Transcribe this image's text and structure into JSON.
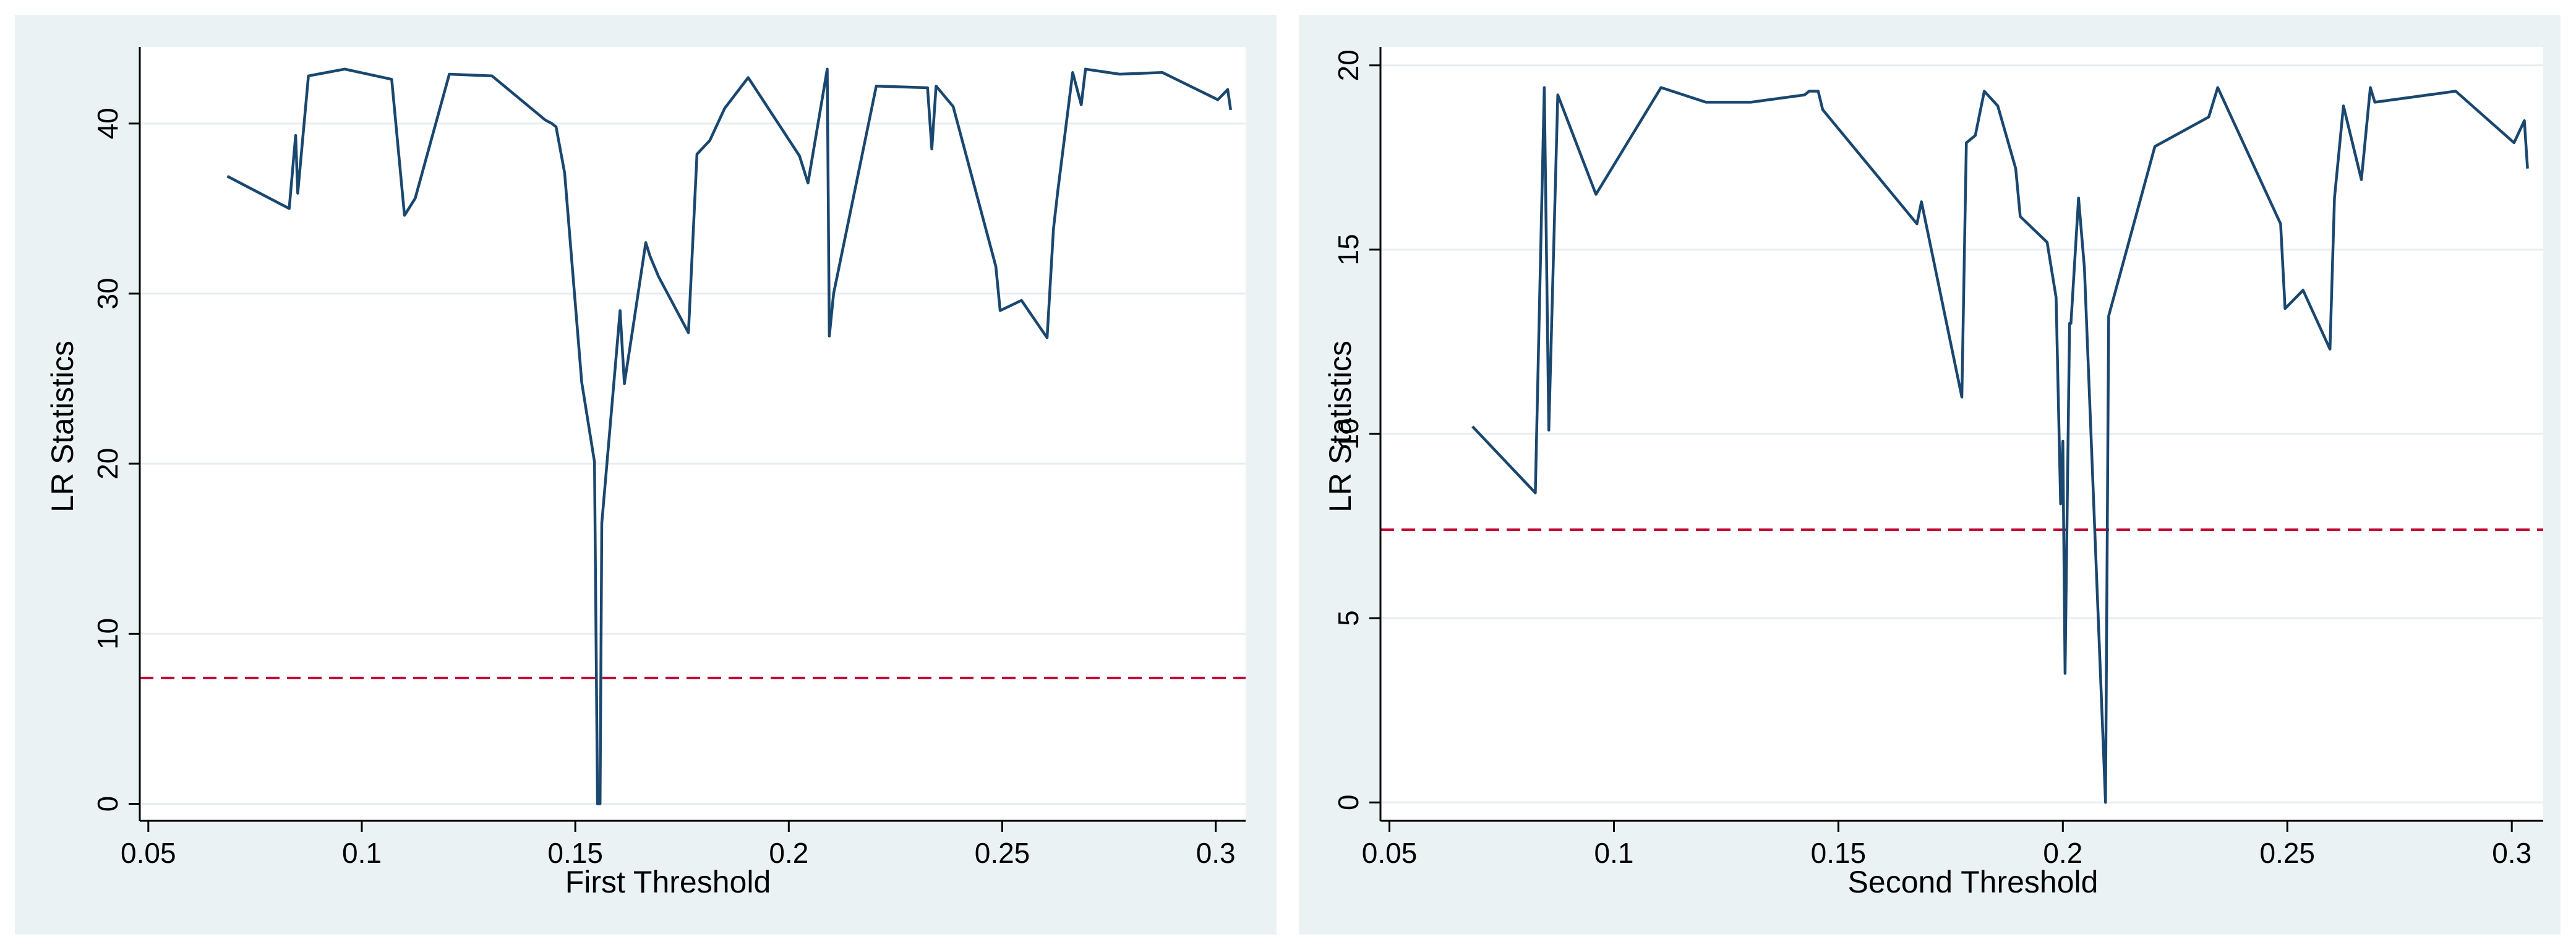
{
  "colors": {
    "panel_background": "#eaf2f3",
    "plot_background": "#ffffff",
    "series_line": "#1a476f",
    "reference_line": "#c10534",
    "grid": "#e8eef0"
  },
  "chart_data": [
    {
      "type": "line",
      "title": "",
      "xlabel": "First Threshold",
      "ylabel": "LR Statistics",
      "xlim": [
        0.048,
        0.307
      ],
      "ylim": [
        -1,
        44.5
      ],
      "xticks": [
        0.05,
        0.1,
        0.15,
        0.2,
        0.25,
        0.3
      ],
      "xtick_labels": [
        "0.05",
        "0.1",
        "0.15",
        "0.2",
        "0.25",
        "0.3"
      ],
      "yticks": [
        0,
        10,
        20,
        30,
        40
      ],
      "ytick_labels": [
        "0",
        "10",
        "20",
        "30",
        "40"
      ],
      "grid": true,
      "reference_line": {
        "y": 7.4,
        "style": "dashed"
      },
      "series": [
        {
          "x": [
            0.0685,
            0.083,
            0.0845,
            0.085,
            0.0875,
            0.096,
            0.107,
            0.11,
            0.1125,
            0.1205,
            0.1305,
            0.143,
            0.1445,
            0.1455,
            0.1475,
            0.1515,
            0.1545,
            0.1552,
            0.1558,
            0.1562,
            0.1605,
            0.1615,
            0.1635,
            0.1665,
            0.1675,
            0.1695,
            0.1765,
            0.1785,
            0.1815,
            0.185,
            0.1905,
            0.2025,
            0.2045,
            0.209,
            0.2095,
            0.2105,
            0.2205,
            0.2325,
            0.2335,
            0.2345,
            0.2385,
            0.2485,
            0.2495,
            0.2545,
            0.2605,
            0.262,
            0.263,
            0.2665,
            0.2685,
            0.2695,
            0.2775,
            0.2875,
            0.3005,
            0.3028,
            0.3035
          ],
          "values": [
            36.9,
            35.0,
            39.3,
            35.9,
            42.8,
            43.2,
            42.6,
            34.6,
            35.6,
            42.9,
            42.8,
            40.2,
            40.0,
            39.8,
            37.1,
            24.8,
            20.1,
            0.0,
            0.0,
            16.5,
            29.0,
            24.7,
            28.0,
            33.0,
            32.2,
            31.0,
            27.7,
            38.2,
            39.0,
            40.9,
            42.7,
            38.1,
            36.5,
            43.2,
            27.5,
            30.0,
            42.2,
            42.1,
            38.5,
            42.2,
            41.0,
            31.6,
            29.0,
            29.6,
            27.4,
            33.8,
            36.0,
            43.0,
            41.1,
            43.2,
            42.9,
            43.0,
            41.4,
            42.0,
            40.8
          ]
        }
      ]
    },
    {
      "type": "line",
      "title": "",
      "xlabel": "Second Threshold",
      "ylabel": "LR Statistics",
      "xlim": [
        0.048,
        0.307
      ],
      "ylim": [
        -0.5,
        20.5
      ],
      "xticks": [
        0.05,
        0.1,
        0.15,
        0.2,
        0.25,
        0.3
      ],
      "xtick_labels": [
        "0.05",
        "0.1",
        "0.15",
        "0.2",
        "0.25",
        "0.3"
      ],
      "yticks": [
        0,
        5,
        10,
        15,
        20
      ],
      "ytick_labels": [
        "0",
        "5",
        "10",
        "15",
        "20"
      ],
      "grid": true,
      "reference_line": {
        "y": 7.4,
        "style": "dashed"
      },
      "series": [
        {
          "x": [
            0.0685,
            0.0825,
            0.0845,
            0.0855,
            0.0875,
            0.096,
            0.107,
            0.1105,
            0.1205,
            0.1305,
            0.1425,
            0.1435,
            0.1455,
            0.1465,
            0.1675,
            0.1685,
            0.1775,
            0.1785,
            0.1805,
            0.1825,
            0.1855,
            0.1895,
            0.1905,
            0.1965,
            0.1985,
            0.1995,
            0.2,
            0.2005,
            0.2015,
            0.2018,
            0.2035,
            0.2048,
            0.2095,
            0.2102,
            0.2205,
            0.2325,
            0.2345,
            0.2485,
            0.2495,
            0.2535,
            0.2595,
            0.2605,
            0.2625,
            0.2665,
            0.2685,
            0.2695,
            0.2875,
            0.3005,
            0.3028,
            0.3035
          ],
          "values": [
            10.2,
            8.4,
            19.4,
            10.1,
            19.2,
            16.5,
            18.7,
            19.4,
            19.0,
            19.0,
            19.2,
            19.3,
            19.3,
            18.8,
            15.7,
            16.3,
            11.0,
            17.9,
            18.1,
            19.3,
            18.9,
            17.2,
            15.9,
            15.2,
            13.7,
            8.1,
            9.8,
            3.5,
            13.0,
            13.0,
            16.4,
            14.5,
            0.0,
            13.2,
            17.8,
            18.6,
            19.4,
            15.7,
            13.4,
            13.9,
            12.3,
            16.4,
            18.9,
            16.9,
            19.4,
            19.0,
            19.3,
            17.9,
            18.5,
            17.2
          ]
        }
      ]
    }
  ]
}
